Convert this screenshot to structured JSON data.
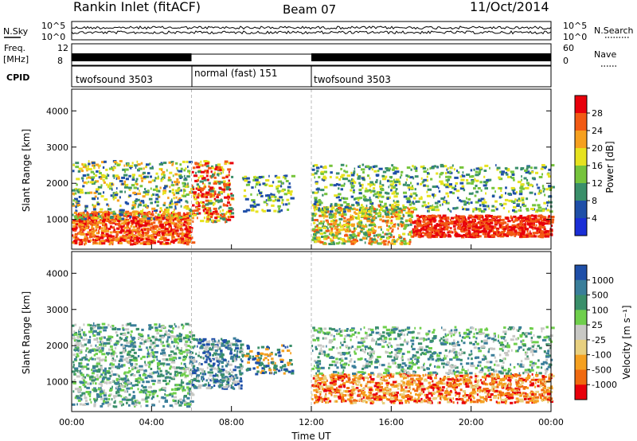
{
  "header": {
    "station": "Rankin Inlet (fitACF)",
    "beam": "Beam 07",
    "date": "11/Oct/2014"
  },
  "noise_panel": {
    "left_label": "N.Sky",
    "right_label": "N.Search",
    "y_ticks": [
      "10^5",
      "10^0"
    ]
  },
  "freq_panel": {
    "left_label": "Freq.",
    "left_unit": "[MHz]",
    "left_ticks": [
      "12",
      "8"
    ],
    "right_label": "Nave",
    "right_ticks": [
      "60",
      "0"
    ]
  },
  "cpid_panel": {
    "label": "CPID",
    "segments": [
      {
        "label": "twofsound 3503",
        "start_h": 0,
        "end_h": 6
      },
      {
        "label": "normal (fast) 151",
        "start_h": 6,
        "end_h": 12
      },
      {
        "label": "twofsound 3503",
        "start_h": 12,
        "end_h": 24
      }
    ]
  },
  "x_axis": {
    "label": "Time UT",
    "ticks": [
      "00:00",
      "04:00",
      "08:00",
      "12:00",
      "16:00",
      "20:00",
      "00:00"
    ],
    "range_h": [
      0,
      24
    ]
  },
  "chart_data": [
    {
      "type": "heatmap",
      "name": "power",
      "ylabel": "Slant Range [km]",
      "yticks": [
        1000,
        2000,
        3000,
        4000
      ],
      "ylim": [
        180,
        4600
      ],
      "colorbar": {
        "label": "Power [dB]",
        "ticks": [
          "28",
          "24",
          "20",
          "16",
          "12",
          "8",
          "4"
        ],
        "colors": [
          "#e8000b",
          "#f25a14",
          "#f6a01f",
          "#e6e21f",
          "#76c43c",
          "#3a8f6a",
          "#1f4fa8",
          "#1a2ed6"
        ]
      }
    },
    {
      "type": "heatmap",
      "name": "velocity",
      "ylabel": "Slant Range [km]",
      "yticks": [
        1000,
        2000,
        3000,
        4000
      ],
      "ylim": [
        180,
        4600
      ],
      "colorbar": {
        "label": "Velocity [m s⁻¹]",
        "ticks": [
          "1000",
          "500",
          "100",
          "25",
          "-25",
          "-100",
          "-500",
          "-1000"
        ],
        "colors": [
          "#1f4fa8",
          "#3a7e9a",
          "#3a8f6a",
          "#6fcf4c",
          "#c8c8c4",
          "#e8d080",
          "#f5a020",
          "#f06a10",
          "#e8000b"
        ]
      }
    }
  ]
}
